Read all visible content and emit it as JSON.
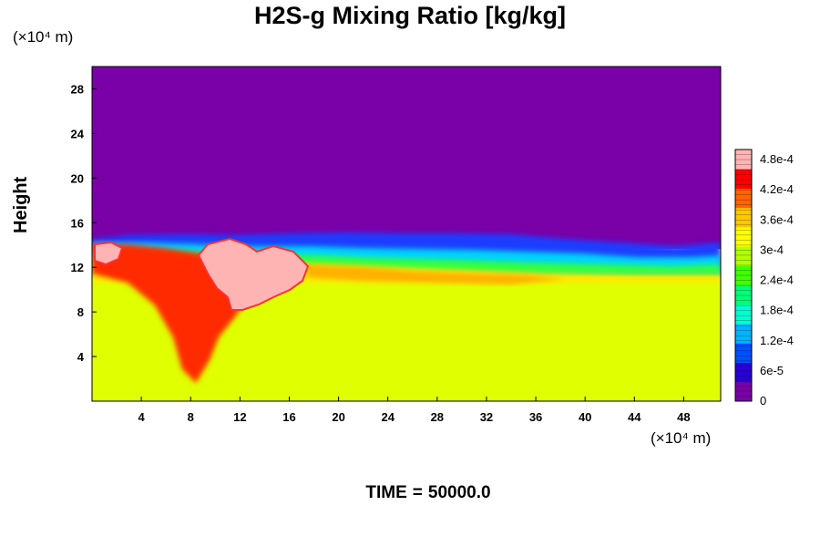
{
  "chart_data": {
    "type": "heatmap",
    "title": "H2S-g Mixing Ratio [kg/kg]",
    "ylabel": "Height",
    "xlabel": "",
    "x_scale_label": "(×10⁴ m)",
    "y_scale_label": "(×10⁴ m)",
    "xlim": [
      0,
      51
    ],
    "ylim": [
      0,
      30
    ],
    "x_ticks": [
      4,
      8,
      12,
      16,
      20,
      24,
      28,
      32,
      36,
      40,
      44,
      48
    ],
    "y_ticks": [
      4,
      8,
      12,
      16,
      20,
      24,
      28
    ],
    "colorbar": {
      "range": [
        0,
        0.0005
      ],
      "labels": [
        "0",
        "6e-5",
        "1.2e-4",
        "1.8e-4",
        "2.4e-4",
        "3e-4",
        "3.6e-4",
        "4.2e-4",
        "4.8e-4"
      ],
      "values": [
        0,
        6e-05,
        0.00012,
        0.00018,
        0.00024,
        0.0003,
        0.00036,
        0.00042,
        0.00048
      ],
      "colors": [
        "#7a00a8",
        "#2a00d8",
        "#0050ff",
        "#00b4ff",
        "#00ffd2",
        "#00ff78",
        "#40ff00",
        "#b4ff00",
        "#ffff00",
        "#ffc800",
        "#ff6400",
        "#ff0000",
        "#ffb4b4"
      ]
    },
    "regions": [
      {
        "name": "upper layer",
        "y_range": [
          15,
          30
        ],
        "value": 0
      },
      {
        "name": "lower layer",
        "y_range": [
          0,
          10.5
        ],
        "value": 0.00033
      },
      {
        "name": "plume",
        "x_range": [
          10,
          19
        ],
        "y_range": [
          8,
          14
        ],
        "value": 0.0005
      }
    ],
    "time_label": "TIME",
    "time_value": "50000.0"
  }
}
